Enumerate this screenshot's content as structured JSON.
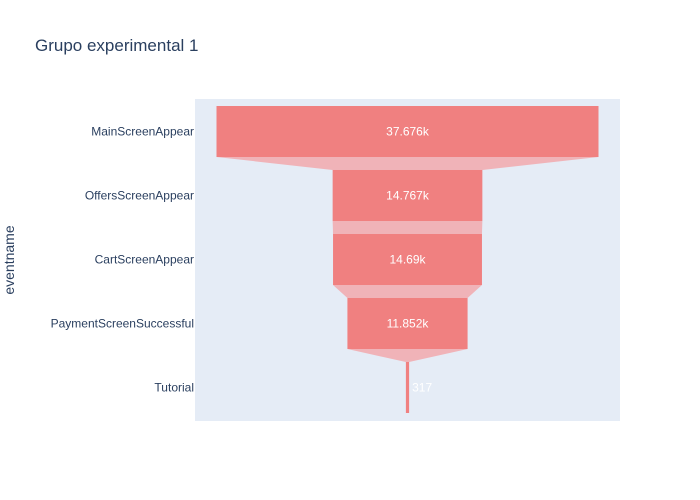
{
  "chart_data": {
    "type": "funnel",
    "title": "Grupo experimental 1",
    "ylabel": "eventname",
    "categories": [
      "MainScreenAppear",
      "OffersScreenAppear",
      "CartScreenAppear",
      "PaymentScreenSuccessful",
      "Tutorial"
    ],
    "values": [
      37676,
      14767,
      14690,
      11852,
      317
    ],
    "value_labels": [
      "37.676k",
      "14.767k",
      "14.69k",
      "11.852k",
      "317"
    ],
    "colors": {
      "bar": "#f08080",
      "connector": "#f0b3b8",
      "plot_bg": "#e5ecf6"
    }
  }
}
